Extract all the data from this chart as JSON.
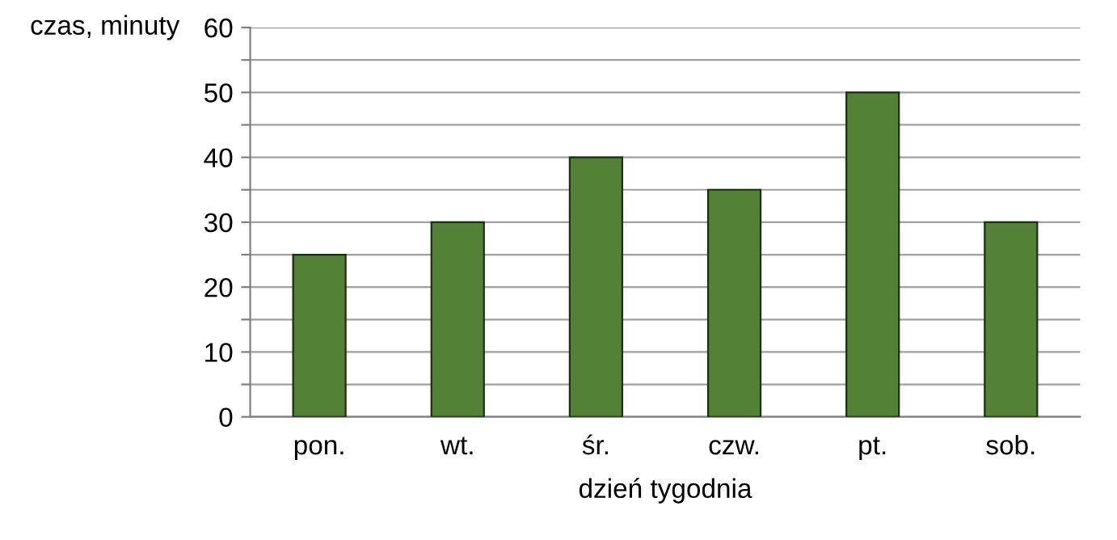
{
  "chart_data": {
    "type": "bar",
    "xlabel": "dzień tygodnia",
    "ylabel": "czas, minuty",
    "categories": [
      "pon.",
      "wt.",
      "śr.",
      "czw.",
      "pt.",
      "sob."
    ],
    "values": [
      25,
      30,
      40,
      35,
      50,
      30
    ],
    "color": "#538135",
    "ylim": [
      0,
      60
    ],
    "yticks": [
      0,
      {
        "value": 5,
        "label": null
      },
      10,
      {
        "value": 15,
        "label": null
      },
      20,
      {
        "value": 25,
        "label": null
      },
      30,
      {
        "value": 35,
        "label": null
      },
      40,
      {
        "value": 45,
        "label": null
      },
      50,
      {
        "value": 55,
        "label": null
      },
      60
    ],
    "grid": "y"
  }
}
